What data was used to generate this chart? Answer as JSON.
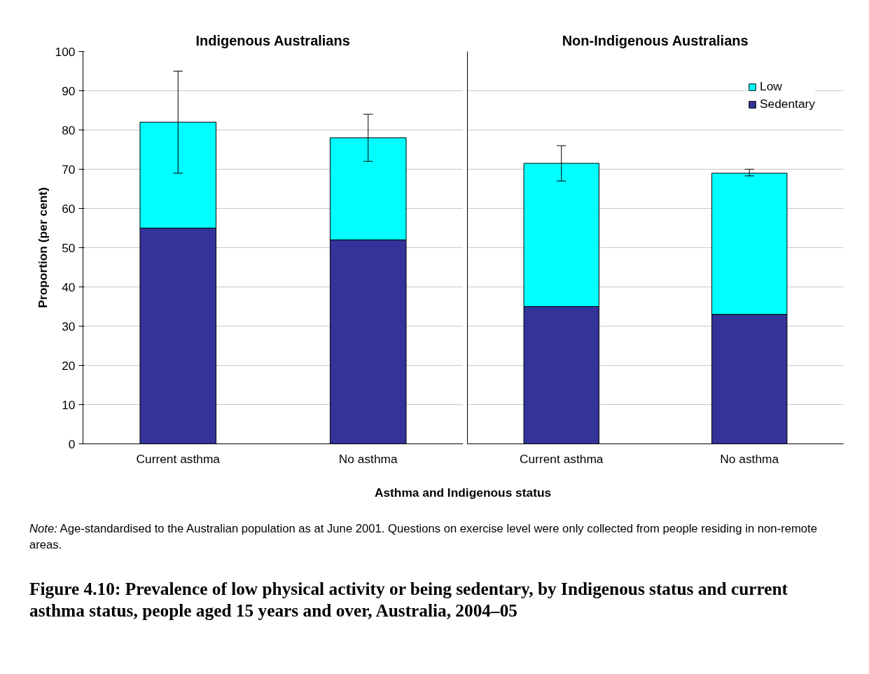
{
  "chart_data": [
    {
      "type": "bar",
      "stacked": true,
      "title": "Indigenous Australians",
      "xlabel": "Asthma and Indigenous status",
      "ylabel": "Proportion (per cent)",
      "categories": [
        "Current asthma",
        "No asthma"
      ],
      "series": [
        {
          "color": "#333399",
          "values": [
            55,
            52
          ]
        },
        {
          "color": "#00ffff",
          "values": [
            27,
            26
          ],
          "errors": [
            [
              69,
              95
            ],
            [
              72,
              84
            ]
          ]
        }
      ],
      "ylim": [
        0,
        100
      ],
      "yticks": [
        0,
        10,
        20,
        30,
        40,
        50,
        60,
        70,
        80,
        90,
        100
      ],
      "grid": "y",
      "annotations": [
        "Note: Age-standardised to the Australian population as at June 2001. Questions on exercise level were only collected from people residing in non-remote areas.",
        "Figure 4.10: Prevalence of low physical activity or being sedentary, by Indigenous status and current asthma status, people aged 15 years and over, Australia, 2004–05"
      ]
    },
    {
      "type": "bar",
      "stacked": true,
      "title": "Non-Indigenous Australians",
      "categories": [
        "Current asthma",
        "No asthma"
      ],
      "series": [
        {
          "name": "Sedentary",
          "color": "#333399",
          "values": [
            35,
            33
          ]
        },
        {
          "name": "Low",
          "color": "#00ffff",
          "values": [
            36.5,
            36
          ],
          "errors": [
            [
              67,
              76
            ],
            [
              68.3,
              70
            ]
          ]
        }
      ],
      "ylim": [
        0,
        100
      ],
      "yticks": [
        0,
        10,
        20,
        30,
        40,
        50,
        60,
        70,
        80,
        90,
        100
      ],
      "grid": "y",
      "tick_labels": "x",
      "legend": "top right"
    }
  ]
}
